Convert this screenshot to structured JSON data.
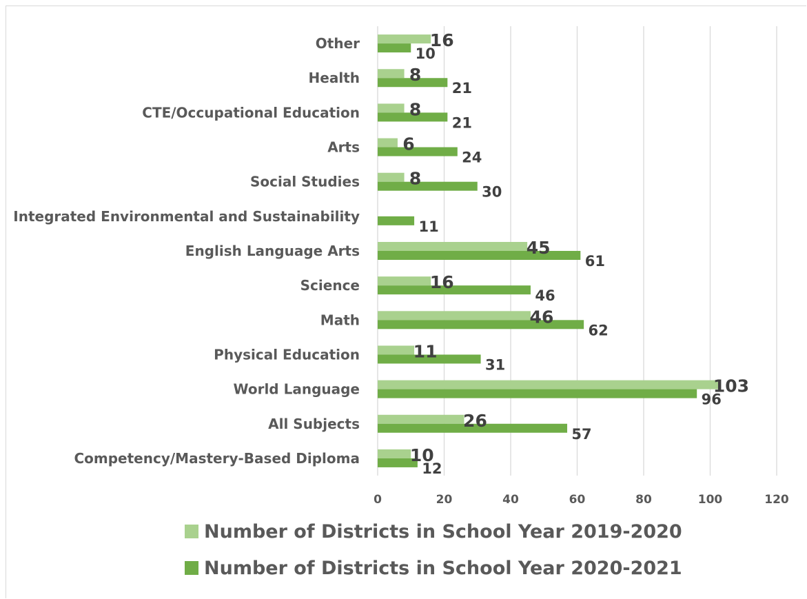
{
  "chart_data": {
    "type": "bar",
    "orientation": "horizontal",
    "categories": [
      "Other",
      "Health",
      "CTE/Occupational Education",
      "Arts",
      "Social Studies",
      "Integrated Environmental and Sustainability",
      "English Language Arts",
      "Science",
      "Math",
      "Physical Education",
      "World Language",
      "All Subjects",
      "Competency/Mastery-Based Diploma"
    ],
    "series": [
      {
        "name": "Number of Districts in School Year 2019-2020",
        "color": "#a9d18e",
        "values": [
          16,
          8,
          8,
          6,
          8,
          null,
          45,
          16,
          46,
          11,
          103,
          26,
          10
        ]
      },
      {
        "name": "Number of Districts in School Year 2020-2021",
        "color": "#70ad47",
        "values": [
          10,
          21,
          21,
          24,
          30,
          11,
          61,
          46,
          62,
          31,
          96,
          57,
          12
        ]
      }
    ],
    "xlim": [
      0,
      120
    ],
    "xticks": [
      "0",
      "20",
      "40",
      "60",
      "80",
      "100",
      "120"
    ],
    "grid": true,
    "legend_position": "bottom",
    "title": "",
    "xlabel": "",
    "ylabel": ""
  }
}
